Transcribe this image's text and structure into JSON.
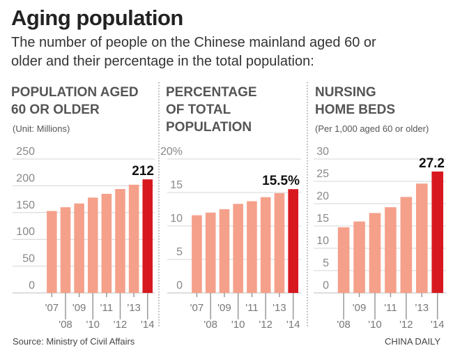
{
  "title": "Aging population",
  "subtitle_lines": [
    "The number of people on the Chinese mainland aged 60 or",
    "older and their percentage in the total population:"
  ],
  "colors": {
    "bar": "#F5A08A",
    "highlight": "#D7191F",
    "grid": "#cccccc"
  },
  "source": "Source: Ministry of Civil Affairs",
  "credit": "CHINA DAILY",
  "chart_data": [
    {
      "type": "bar",
      "title_lines": [
        "POPULATION AGED",
        "60 OR OLDER"
      ],
      "unit": "(Unit: Millions)",
      "categories": [
        "'07",
        "'08",
        "'09",
        "'10",
        "'11",
        "'12",
        "'13",
        "'14"
      ],
      "values": [
        153,
        160,
        167,
        178,
        185,
        194,
        202,
        212
      ],
      "data_label": "212",
      "yticks": [
        "0",
        "50",
        "100",
        "150",
        "200",
        "250"
      ],
      "ylim": [
        0,
        250
      ],
      "grid": true
    },
    {
      "type": "bar",
      "title_lines": [
        "PERCENTAGE",
        "OF TOTAL",
        "POPULATION"
      ],
      "unit": "",
      "categories": [
        "'07",
        "'08",
        "'09",
        "'10",
        "'11",
        "'12",
        "'13",
        "'14"
      ],
      "values": [
        11.6,
        12.0,
        12.5,
        13.3,
        13.7,
        14.3,
        14.9,
        15.5
      ],
      "data_label": "15.5%",
      "yticks": [
        "0",
        "5",
        "10",
        "15",
        "20%"
      ],
      "ylim": [
        0,
        20
      ],
      "grid": true
    },
    {
      "type": "bar",
      "title_lines": [
        "NURSING",
        "HOME BEDS"
      ],
      "unit": "(Per 1,000 aged 60 or older)",
      "categories": [
        "'08",
        "'09",
        "'10",
        "'11",
        "'12",
        "'13",
        "'14"
      ],
      "values": [
        14.7,
        16.0,
        17.9,
        19.2,
        21.5,
        24.5,
        27.2
      ],
      "data_label": "27.2",
      "yticks": [
        "0",
        "5",
        "10",
        "15",
        "20",
        "25",
        "30"
      ],
      "ylim": [
        0,
        30
      ],
      "grid": true
    }
  ]
}
